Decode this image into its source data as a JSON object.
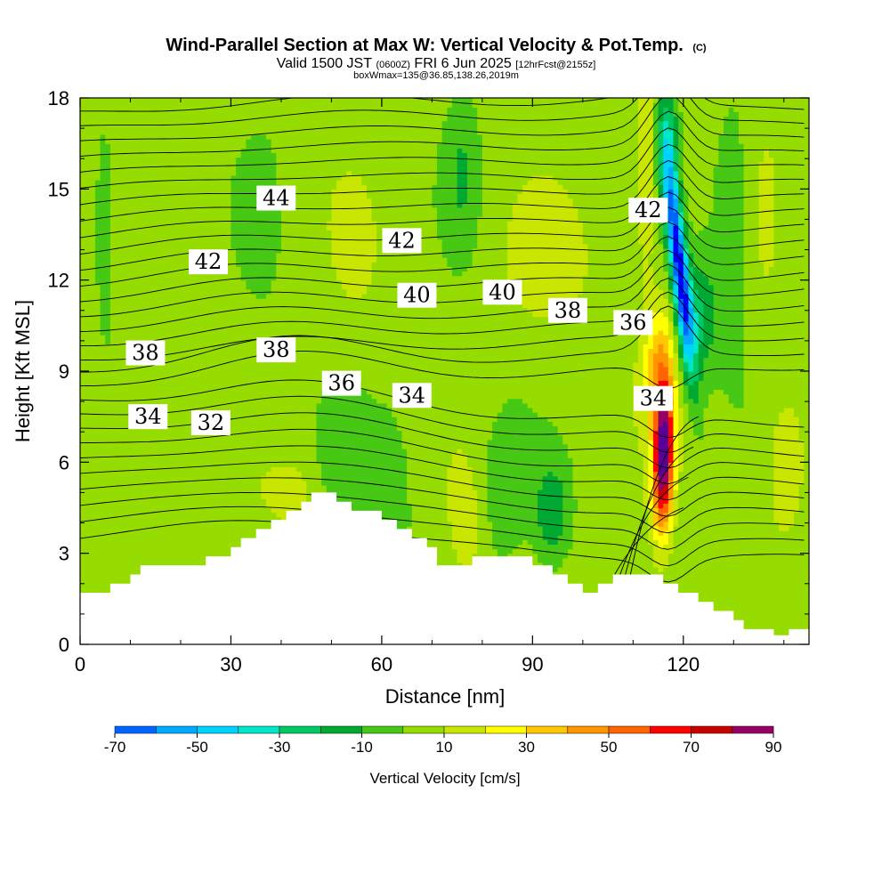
{
  "title": {
    "main": "Wind-Parallel Section at Max W: Vertical Velocity & Pot.Temp.",
    "copyright": "(C)",
    "valid_prefix": "Valid 1500 JST",
    "utc": "(0600Z)",
    "valid_date": "FRI 6 Jun 2025",
    "forecast": "[12hrFcst@2155z]",
    "box_info": "boxWmax=135@36.85,138.26,2019m"
  },
  "chart_data": {
    "type": "heatmap",
    "xlabel": "Distance [nm]",
    "ylabel": "Height [Kft MSL]",
    "xlim": [
      0,
      145
    ],
    "ylim": [
      0,
      18
    ],
    "x_ticks": [
      "0",
      "30",
      "60",
      "90",
      "120"
    ],
    "y_ticks": [
      "0",
      "3",
      "6",
      "9",
      "12",
      "15",
      "18"
    ],
    "terrain_kft": [
      [
        0,
        1.7
      ],
      [
        6,
        1.7
      ],
      [
        6,
        2.0
      ],
      [
        10,
        2.0
      ],
      [
        10,
        2.3
      ],
      [
        12,
        2.3
      ],
      [
        12,
        2.6
      ],
      [
        25,
        2.6
      ],
      [
        25,
        2.9
      ],
      [
        30,
        2.9
      ],
      [
        30,
        3.2
      ],
      [
        32,
        3.2
      ],
      [
        32,
        3.5
      ],
      [
        35,
        3.5
      ],
      [
        35,
        3.8
      ],
      [
        38,
        3.8
      ],
      [
        38,
        4.1
      ],
      [
        41,
        4.1
      ],
      [
        41,
        4.4
      ],
      [
        44,
        4.4
      ],
      [
        44,
        4.7
      ],
      [
        46,
        4.7
      ],
      [
        46,
        5.0
      ],
      [
        51,
        5.0
      ],
      [
        51,
        4.7
      ],
      [
        54,
        4.7
      ],
      [
        54,
        4.4
      ],
      [
        60,
        4.4
      ],
      [
        60,
        4.1
      ],
      [
        63,
        4.1
      ],
      [
        63,
        3.8
      ],
      [
        66,
        3.8
      ],
      [
        66,
        3.5
      ],
      [
        69,
        3.5
      ],
      [
        69,
        3.2
      ],
      [
        71,
        3.2
      ],
      [
        71,
        2.6
      ],
      [
        78,
        2.6
      ],
      [
        78,
        2.9
      ],
      [
        90,
        2.9
      ],
      [
        90,
        2.6
      ],
      [
        94,
        2.6
      ],
      [
        94,
        2.3
      ],
      [
        97,
        2.3
      ],
      [
        97,
        2.0
      ],
      [
        100,
        2.0
      ],
      [
        100,
        1.7
      ],
      [
        103,
        1.7
      ],
      [
        103,
        2.0
      ],
      [
        106,
        2.0
      ],
      [
        106,
        2.3
      ],
      [
        116,
        2.3
      ],
      [
        116,
        2.0
      ],
      [
        119,
        2.0
      ],
      [
        119,
        1.7
      ],
      [
        123,
        1.7
      ],
      [
        123,
        1.4
      ],
      [
        126,
        1.4
      ],
      [
        126,
        1.1
      ],
      [
        130,
        1.1
      ],
      [
        130,
        0.8
      ],
      [
        132,
        0.8
      ],
      [
        132,
        0.5
      ],
      [
        138,
        0.5
      ],
      [
        138,
        0.3
      ],
      [
        141,
        0.3
      ],
      [
        141,
        0.5
      ],
      [
        145,
        0.5
      ]
    ],
    "color_levels": [
      -70,
      -60,
      -50,
      -40,
      -30,
      -20,
      -10,
      0,
      10,
      20,
      30,
      40,
      50,
      60,
      70,
      80,
      90
    ],
    "colors": [
      "#0000ff",
      "#0064ff",
      "#00aaff",
      "#00d2ff",
      "#00e6c8",
      "#00c864",
      "#00aa32",
      "#46c814",
      "#96dc00",
      "#c8e600",
      "#ffff00",
      "#ffc800",
      "#ff9600",
      "#ff6400",
      "#ff0000",
      "#c80000",
      "#960064",
      "#5a0096"
    ],
    "colorbar_labels": [
      "-70",
      "-50",
      "-30",
      "-10",
      "10",
      "30",
      "50",
      "70",
      "90"
    ],
    "colorbar_title": "Vertical Velocity [cm/s]",
    "theta_contour_labels": [
      {
        "text": "44",
        "x": 39,
        "y": 14.7
      },
      {
        "text": "42",
        "x": 25.5,
        "y": 12.6
      },
      {
        "text": "42",
        "x": 64,
        "y": 13.3
      },
      {
        "text": "42",
        "x": 113,
        "y": 14.3
      },
      {
        "text": "40",
        "x": 67,
        "y": 11.5
      },
      {
        "text": "40",
        "x": 84,
        "y": 11.6
      },
      {
        "text": "38",
        "x": 97,
        "y": 11.0
      },
      {
        "text": "36",
        "x": 110,
        "y": 10.6
      },
      {
        "text": "38",
        "x": 13,
        "y": 9.6
      },
      {
        "text": "38",
        "x": 39,
        "y": 9.7
      },
      {
        "text": "36",
        "x": 52,
        "y": 8.6
      },
      {
        "text": "34",
        "x": 66,
        "y": 8.2
      },
      {
        "text": "34",
        "x": 114,
        "y": 8.1
      },
      {
        "text": "34",
        "x": 13.5,
        "y": 7.5
      },
      {
        "text": "32",
        "x": 26,
        "y": 7.3
      }
    ],
    "w_features_cms": [
      {
        "desc": "updraft core",
        "x": 116,
        "y": 6.2,
        "w": 90
      },
      {
        "desc": "downdraft core",
        "x": 119.5,
        "y": 12.5,
        "w": -70
      }
    ]
  }
}
